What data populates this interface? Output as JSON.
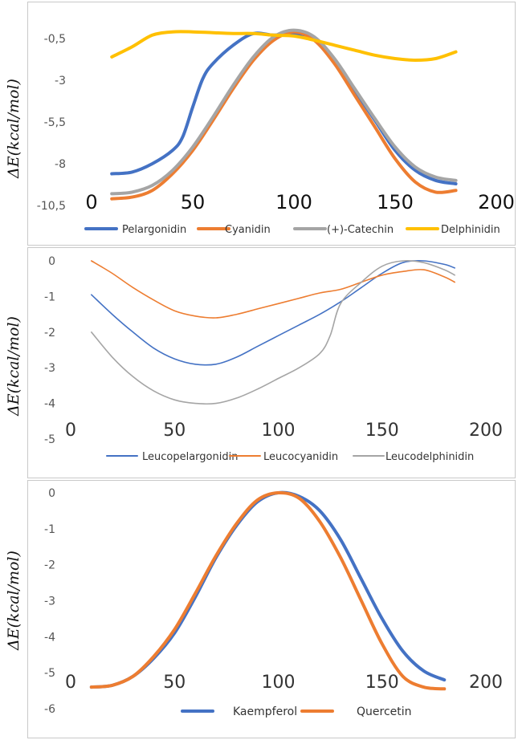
{
  "chart_data": [
    {
      "type": "line",
      "ylabel": "ΔE(kcal/mol)",
      "xlim": [
        0,
        200
      ],
      "ylim": [
        -10.5,
        1
      ],
      "x_ticks": [
        "0",
        "50",
        "100",
        "150",
        "200"
      ],
      "y_ticks": [
        "-0,5",
        "-3",
        "-5,5",
        "-8",
        "-10,5"
      ],
      "y_tick_values": [
        -0.5,
        -3,
        -5.5,
        -8,
        -10.5
      ],
      "legend_position": "bottom",
      "series": [
        {
          "name": "Pelargonidin",
          "color": "#4472C4",
          "x": [
            10,
            20,
            30,
            40,
            45,
            50,
            55,
            60,
            70,
            80,
            90,
            100,
            110,
            120,
            130,
            140,
            150,
            160,
            170,
            180
          ],
          "y": [
            -8.6,
            -8.5,
            -8.0,
            -7.2,
            -6.4,
            -4.6,
            -2.9,
            -2.0,
            -0.9,
            -0.2,
            -0.3,
            -0.2,
            -0.5,
            -1.8,
            -3.6,
            -5.4,
            -7.2,
            -8.4,
            -9.0,
            -9.2
          ]
        },
        {
          "name": "Cyanidin",
          "color": "#ED7D31",
          "x": [
            10,
            20,
            30,
            40,
            50,
            60,
            70,
            80,
            90,
            100,
            110,
            120,
            130,
            140,
            150,
            160,
            170,
            180
          ],
          "y": [
            -10.1,
            -10.0,
            -9.6,
            -8.6,
            -7.2,
            -5.4,
            -3.5,
            -1.8,
            -0.6,
            -0.1,
            -0.6,
            -2.0,
            -3.9,
            -5.8,
            -7.7,
            -9.1,
            -9.7,
            -9.6
          ]
        },
        {
          "name": "(+)-Catechin",
          "color": "#A5A5A5",
          "x": [
            10,
            20,
            30,
            40,
            50,
            60,
            70,
            80,
            90,
            100,
            110,
            120,
            130,
            140,
            150,
            160,
            170,
            180
          ],
          "y": [
            -9.8,
            -9.7,
            -9.3,
            -8.4,
            -7.0,
            -5.2,
            -3.3,
            -1.6,
            -0.4,
            0.0,
            -0.4,
            -1.7,
            -3.5,
            -5.3,
            -7.0,
            -8.2,
            -8.8,
            -9.0
          ]
        },
        {
          "name": "Delphinidin",
          "color": "#FFC000",
          "x": [
            10,
            20,
            30,
            40,
            50,
            60,
            70,
            80,
            90,
            100,
            110,
            120,
            130,
            140,
            150,
            160,
            170,
            180
          ],
          "y": [
            -1.6,
            -1.0,
            -0.3,
            -0.1,
            -0.1,
            -0.15,
            -0.2,
            -0.2,
            -0.3,
            -0.35,
            -0.6,
            -0.9,
            -1.2,
            -1.5,
            -1.7,
            -1.8,
            -1.7,
            -1.3
          ]
        }
      ]
    },
    {
      "type": "line",
      "ylabel": "ΔE(kcal/mol)",
      "xlim": [
        0,
        200
      ],
      "ylim": [
        -5,
        0
      ],
      "x_ticks": [
        "0",
        "50",
        "100",
        "150",
        "200"
      ],
      "y_ticks": [
        "0",
        "-1",
        "-2",
        "-3",
        "-4",
        "-5"
      ],
      "y_tick_values": [
        0,
        -1,
        -2,
        -3,
        -4,
        -5
      ],
      "legend_position": "bottom",
      "series": [
        {
          "name": "Leucopelargonidin",
          "color": "#4472C4",
          "x": [
            10,
            20,
            30,
            40,
            50,
            60,
            70,
            80,
            90,
            100,
            110,
            120,
            130,
            140,
            150,
            160,
            170,
            180,
            185
          ],
          "y": [
            -0.95,
            -1.5,
            -2.0,
            -2.45,
            -2.75,
            -2.9,
            -2.9,
            -2.7,
            -2.4,
            -2.1,
            -1.8,
            -1.5,
            -1.15,
            -0.75,
            -0.35,
            -0.05,
            0.0,
            -0.1,
            -0.2
          ]
        },
        {
          "name": "Leucocyanidin",
          "color": "#ED7D31",
          "x": [
            10,
            20,
            30,
            40,
            50,
            60,
            70,
            80,
            90,
            100,
            110,
            120,
            130,
            140,
            150,
            160,
            170,
            180,
            185
          ],
          "y": [
            0.0,
            -0.35,
            -0.75,
            -1.1,
            -1.4,
            -1.55,
            -1.6,
            -1.5,
            -1.35,
            -1.2,
            -1.05,
            -0.9,
            -0.8,
            -0.6,
            -0.4,
            -0.3,
            -0.25,
            -0.45,
            -0.6
          ]
        },
        {
          "name": "Leucodelphinidin",
          "color": "#A5A5A5",
          "x": [
            10,
            20,
            30,
            40,
            50,
            60,
            70,
            80,
            90,
            100,
            110,
            120,
            125,
            130,
            140,
            150,
            160,
            170,
            180,
            185
          ],
          "y": [
            -2.0,
            -2.7,
            -3.25,
            -3.65,
            -3.9,
            -4.0,
            -4.0,
            -3.85,
            -3.6,
            -3.3,
            -3.0,
            -2.6,
            -2.1,
            -1.2,
            -0.6,
            -0.15,
            0.0,
            -0.05,
            -0.25,
            -0.4
          ]
        }
      ]
    },
    {
      "type": "line",
      "ylabel": "ΔE(kcal/mol)",
      "xlim": [
        0,
        200
      ],
      "ylim": [
        -6,
        0
      ],
      "x_ticks": [
        "0",
        "50",
        "100",
        "150",
        "200"
      ],
      "y_ticks": [
        "0",
        "-1",
        "-2",
        "-3",
        "-4",
        "-5",
        "-6"
      ],
      "y_tick_values": [
        0,
        -1,
        -2,
        -3,
        -4,
        -5,
        -6
      ],
      "legend_position": "bottom",
      "series": [
        {
          "name": "Kaempferol",
          "color": "#4472C4",
          "x": [
            10,
            20,
            30,
            40,
            50,
            60,
            70,
            80,
            90,
            100,
            110,
            120,
            130,
            140,
            150,
            160,
            170,
            180
          ],
          "y": [
            -5.4,
            -5.35,
            -5.1,
            -4.6,
            -3.9,
            -2.9,
            -1.8,
            -0.9,
            -0.25,
            0.0,
            -0.1,
            -0.5,
            -1.3,
            -2.4,
            -3.5,
            -4.4,
            -4.95,
            -5.2
          ]
        },
        {
          "name": "Quercetin",
          "color": "#ED7D31",
          "x": [
            10,
            20,
            30,
            40,
            50,
            60,
            70,
            80,
            90,
            100,
            110,
            120,
            130,
            140,
            150,
            160,
            170,
            180
          ],
          "y": [
            -5.4,
            -5.35,
            -5.1,
            -4.55,
            -3.8,
            -2.8,
            -1.75,
            -0.85,
            -0.2,
            0.0,
            -0.15,
            -0.8,
            -1.8,
            -3.0,
            -4.2,
            -5.1,
            -5.4,
            -5.45
          ]
        }
      ]
    }
  ]
}
